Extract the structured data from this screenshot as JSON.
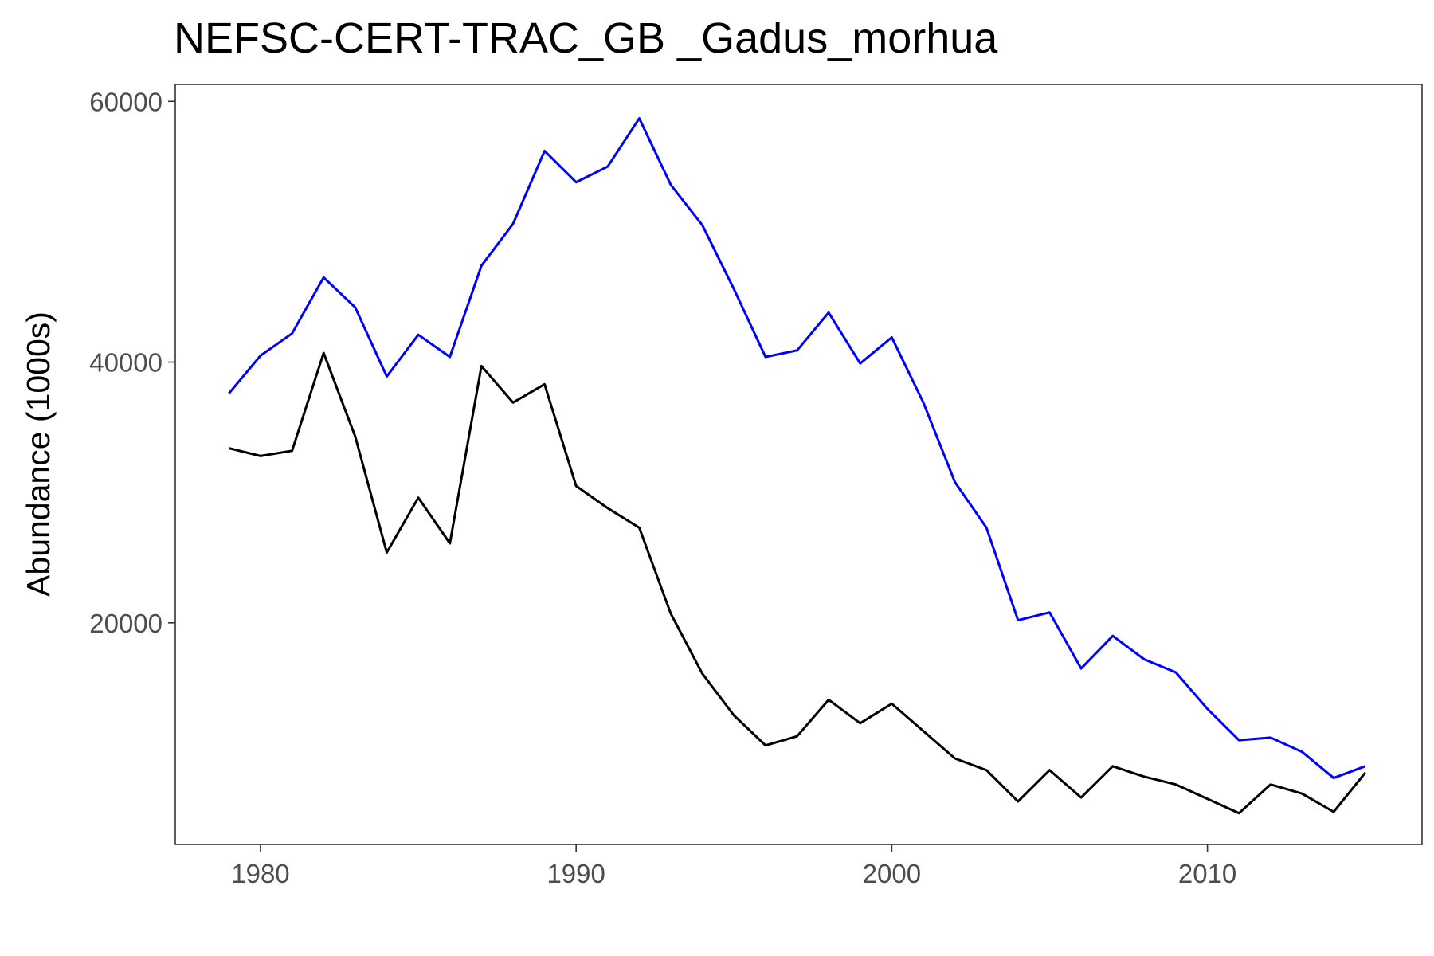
{
  "chart_data": {
    "type": "line",
    "title": "NEFSC-CERT-TRAC_GB _Gadus_morhua",
    "xlabel": "",
    "ylabel": "Abundance (1000s)",
    "xlim": [
      1977.3,
      2016.8
    ],
    "ylim": [
      3000,
      61300
    ],
    "x_ticks": [
      1980,
      1990,
      2000,
      2010
    ],
    "y_ticks": [
      20000,
      40000,
      60000
    ],
    "grid": false,
    "legend": "none",
    "x": [
      1979,
      1980,
      1981,
      1982,
      1983,
      1984,
      1985,
      1986,
      1987,
      1988,
      1989,
      1990,
      1991,
      1992,
      1993,
      1994,
      1995,
      1996,
      1997,
      1998,
      1999,
      2000,
      2001,
      2002,
      2003,
      2004,
      2005,
      2006,
      2007,
      2008,
      2009,
      2010,
      2011,
      2012,
      2013,
      2014,
      2015
    ],
    "series": [
      {
        "color": "#0000ff",
        "values": [
          37600,
          40500,
          42200,
          46500,
          44200,
          38900,
          42100,
          40400,
          47400,
          50600,
          56200,
          53800,
          55000,
          58700,
          53600,
          50500,
          45600,
          40400,
          40900,
          43800,
          39900,
          41900,
          36900,
          30800,
          27300,
          20200,
          20800,
          16500,
          19000,
          17200,
          16200,
          13400,
          11000,
          11200,
          10100,
          8100,
          9000
        ]
      },
      {
        "color": "#000000",
        "values": [
          33400,
          32800,
          33200,
          40700,
          34300,
          25400,
          29600,
          26100,
          39700,
          36900,
          38300,
          30500,
          28800,
          27300,
          20700,
          16100,
          12900,
          10600,
          11300,
          14100,
          12300,
          13800,
          11700,
          9600,
          8700,
          6300,
          8700,
          6600,
          9000,
          8200,
          7600,
          6500,
          5400,
          7600,
          6900,
          5500,
          8500
        ]
      }
    ]
  }
}
